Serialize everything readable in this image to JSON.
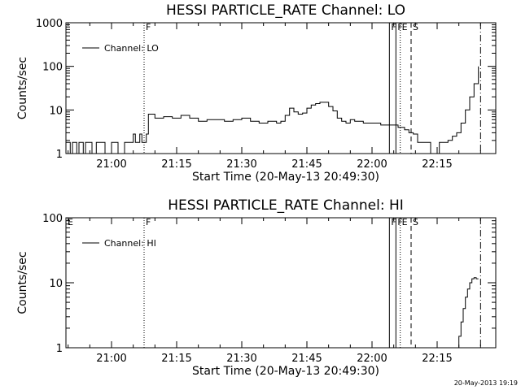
{
  "chart_data": [
    {
      "type": "line",
      "title": "HESSI PARTICLE_RATE Channel: LO",
      "xlabel": "Start Time (20-May-13 20:49:30)",
      "ylabel": "Counts/sec",
      "y_scale": "log",
      "ylim": [
        1,
        1000
      ],
      "xlim": [
        "20:49:30",
        "22:28:30"
      ],
      "x_ticks": [
        "21:00",
        "21:15",
        "21:30",
        "21:45",
        "22:00",
        "22:15"
      ],
      "y_ticks": [
        "1",
        "10",
        "100",
        "1000"
      ],
      "legend": {
        "placement": "top-left",
        "entries": [
          "Channel: LO"
        ]
      },
      "grid": false,
      "series": [
        {
          "name": "Channel: LO",
          "x": [
            "20:49:30",
            "20:50:30",
            "20:51:00",
            "20:51:30",
            "20:52:00",
            "20:52:30",
            "20:53:30",
            "20:54:00",
            "20:55:00",
            "20:55:30",
            "20:56:30",
            "20:58:00",
            "20:58:30",
            "21:00:00",
            "21:01:00",
            "21:01:30",
            "21:02:30",
            "21:03:00",
            "21:04:00",
            "21:05:00",
            "21:05:30",
            "21:06:30",
            "21:07:00",
            "21:08:00",
            "21:08:30",
            "21:10:00",
            "21:12:00",
            "21:14:00",
            "21:16:00",
            "21:18:00",
            "21:20:00",
            "21:22:00",
            "21:24:00",
            "21:26:00",
            "21:28:00",
            "21:30:00",
            "21:32:00",
            "21:34:00",
            "21:36:00",
            "21:38:00",
            "21:39:00",
            "21:40:00",
            "21:41:00",
            "21:42:00",
            "21:43:00",
            "21:44:00",
            "21:45:00",
            "21:46:00",
            "21:47:00",
            "21:48:00",
            "21:49:00",
            "21:50:00",
            "21:51:00",
            "21:52:00",
            "21:53:00",
            "21:54:00",
            "21:55:00",
            "21:56:00",
            "21:58:00",
            "22:00:00",
            "22:02:00",
            "22:04:00",
            "22:06:00",
            "22:07:30",
            "22:08:30",
            "22:09:30",
            "22:10:30",
            "22:11:30",
            "22:12:30",
            "22:13:30",
            "22:14:30",
            "22:15:30",
            "22:16:30",
            "22:17:30",
            "22:18:30",
            "22:19:30",
            "22:20:30",
            "22:21:30",
            "22:22:30",
            "22:23:30",
            "22:24:30"
          ],
          "values": [
            1.8,
            1.0,
            1.8,
            1.8,
            1.0,
            1.8,
            1.0,
            1.8,
            1.8,
            1.0,
            1.8,
            1.8,
            1.0,
            1.8,
            1.8,
            1.0,
            1.0,
            1.8,
            1.8,
            2.8,
            1.8,
            2.8,
            1.8,
            2.8,
            8.0,
            6.5,
            7.0,
            6.5,
            7.5,
            6.5,
            5.5,
            6.0,
            6.0,
            5.5,
            6.0,
            6.5,
            5.5,
            5.0,
            5.5,
            5.0,
            5.5,
            7.5,
            11.0,
            9.0,
            8.0,
            8.5,
            11.0,
            13.0,
            14.0,
            15.0,
            15.0,
            12.0,
            9.5,
            6.5,
            5.5,
            5.0,
            6.0,
            5.5,
            5.0,
            5.0,
            4.5,
            4.5,
            4.0,
            3.5,
            3.0,
            2.8,
            1.8,
            1.8,
            1.8,
            1.0,
            1.0,
            1.8,
            1.8,
            2.0,
            2.5,
            3.0,
            5.0,
            10.0,
            20.0,
            40.0,
            100.0
          ]
        }
      ]
    },
    {
      "type": "line",
      "title": "HESSI PARTICLE_RATE Channel: HI",
      "xlabel": "Start Time (20-May-13 20:49:30)",
      "ylabel": "Counts/sec",
      "y_scale": "log",
      "ylim": [
        1,
        100
      ],
      "xlim": [
        "20:49:30",
        "22:28:30"
      ],
      "x_ticks": [
        "21:00",
        "21:15",
        "21:30",
        "21:45",
        "22:00",
        "22:15"
      ],
      "y_ticks": [
        "1",
        "10",
        "100"
      ],
      "legend": {
        "placement": "top-left",
        "entries": [
          "Channel: HI"
        ]
      },
      "grid": false,
      "series": [
        {
          "name": "Channel: HI",
          "x": [
            "22:19:30",
            "22:20:00",
            "22:20:30",
            "22:21:00",
            "22:21:30",
            "22:22:00",
            "22:22:30",
            "22:23:00",
            "22:23:30",
            "22:24:00",
            "22:24:30"
          ],
          "values": [
            1.0,
            1.5,
            2.5,
            4.0,
            6.0,
            8.0,
            10.0,
            11.5,
            12.0,
            11.5,
            11.5
          ]
        }
      ]
    }
  ],
  "markers": [
    {
      "label": "F",
      "time": "21:07:30",
      "style": "dotted"
    },
    {
      "label": "F",
      "time": "22:04:00",
      "style": "solid"
    },
    {
      "label": "F",
      "time": "22:05:30",
      "style": "solid"
    },
    {
      "label": "E",
      "time": "22:06:30",
      "style": "dotted"
    },
    {
      "label": "S",
      "time": "22:09:00",
      "style": "dashed"
    },
    {
      "label": "",
      "time": "22:25:00",
      "style": "dashdot"
    }
  ],
  "panel2_e_flag": "E",
  "footer_timestamp": "20-May-2013 19:19"
}
